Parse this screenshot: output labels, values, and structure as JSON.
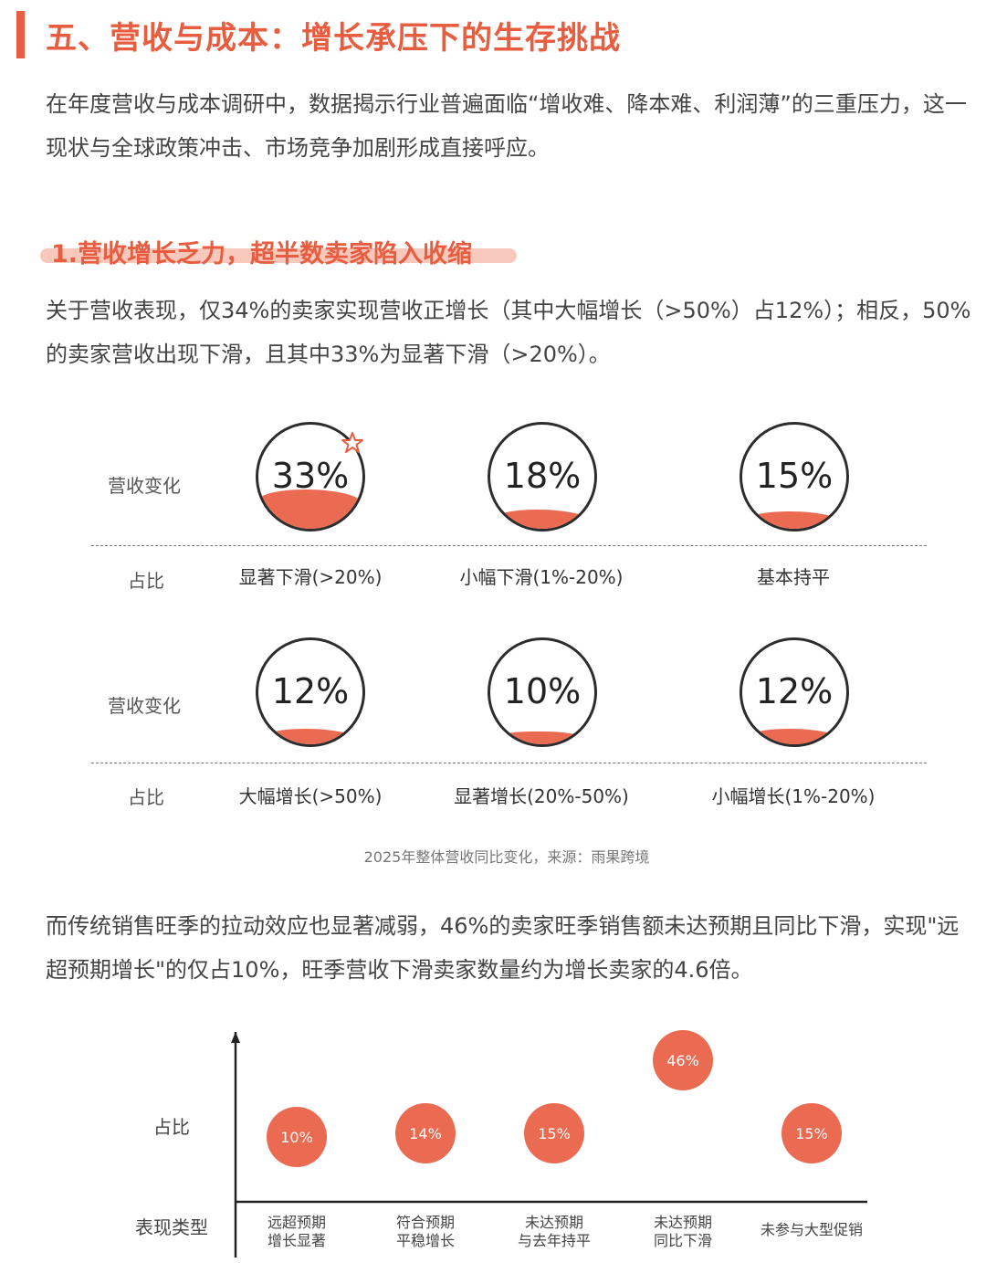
{
  "section_title": "五、营收与成本：增长承压下的生存挑战",
  "intro": "在年度营收与成本调研中，数据揭示行业普遍面临“增收难、降本难、利润薄”的三重压力，这一现状与全球政策冲击、市场竞争加剧形成直接呼应。",
  "subsection_title": "1.营收增长乏力，超半数卖家陷入收缩",
  "paragraph_revenue": "关于营收表现，仅34%的卖家实现营收正增长（其中大幅增长（>50%）占12%）；相反，50%的卖家营收出现下滑，且其中33%为显著下滑（>20%）。",
  "row_label_change": "营收变化",
  "row_label_share": "占比",
  "caption": "2025年整体营收同比变化，来源：雨果跨境",
  "paragraph_peak": "而传统销售旺季的拉动效应也显著减弱，46%的卖家旺季销售额未达预期且同比下滑，实现\"远超预期增长\"的仅占10%，旺季营收下滑卖家数量约为增长卖家的4.6倍。",
  "accent_color": "#e85c3f",
  "wave_color": "#ea6b52",
  "highlight_icon": "star-icon",
  "chart_data": [
    {
      "type": "table",
      "title": "",
      "categories": [
        "显著下滑(>20%)",
        "小幅下滑(1%-20%)",
        "基本持平",
        "大幅增长(>50%)",
        "显著增长(20%-50%)",
        "小幅增长(1%-20%)"
      ],
      "values": [
        33,
        18,
        15,
        12,
        10,
        12
      ],
      "labels": [
        "33%",
        "18%",
        "15%",
        "12%",
        "10%",
        "12%"
      ],
      "unit": "%"
    },
    {
      "type": "scatter",
      "title": "",
      "xlabel": "表现类型",
      "ylabel": "占比",
      "categories": [
        "远超预期\n增长显著",
        "符合预期\n平稳增长",
        "未达预期\n与去年持平",
        "未达预期\n同比下滑",
        "未参与大型促销"
      ],
      "values": [
        10,
        14,
        15,
        46,
        15
      ],
      "labels": [
        "10%",
        "14%",
        "15%",
        "46%",
        "15%"
      ]
    }
  ]
}
